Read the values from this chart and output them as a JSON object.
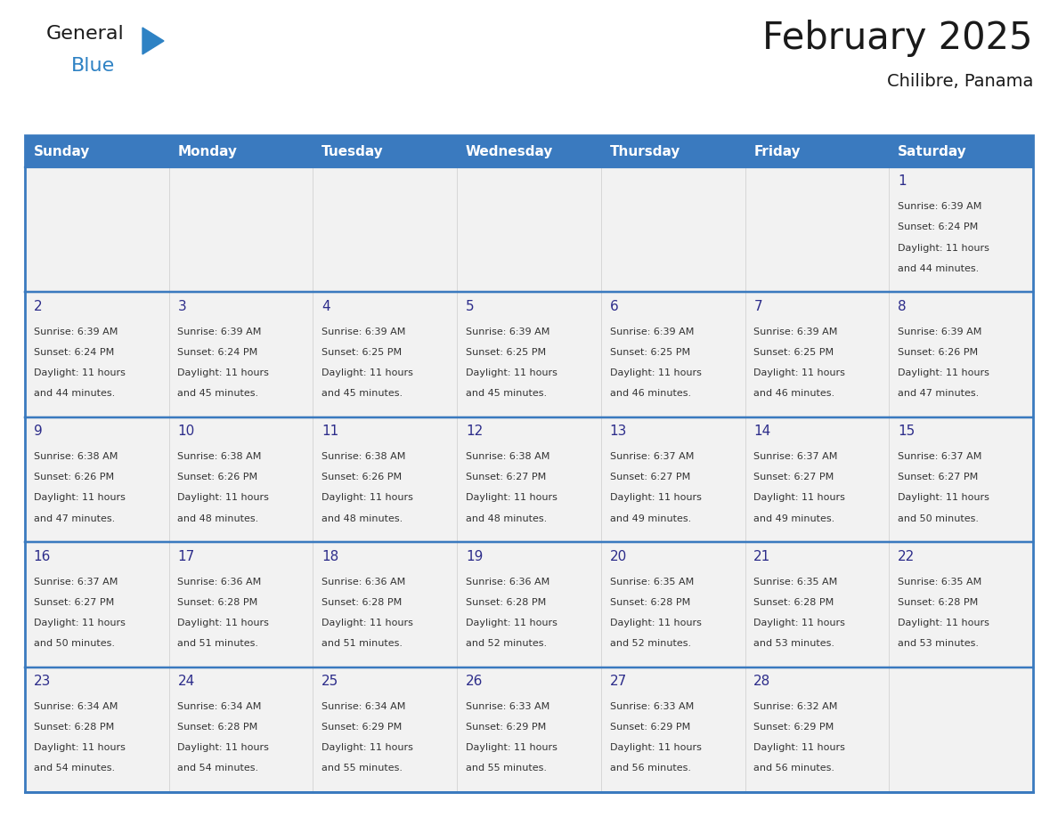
{
  "title": "February 2025",
  "subtitle": "Chilibre, Panama",
  "days_of_week": [
    "Sunday",
    "Monday",
    "Tuesday",
    "Wednesday",
    "Thursday",
    "Friday",
    "Saturday"
  ],
  "header_bg": "#3a7abf",
  "header_text": "#ffffff",
  "cell_bg": "#f2f2f2",
  "border_color": "#3a7abf",
  "week_sep_color": "#3a7abf",
  "day_num_color": "#2c2c8a",
  "text_color": "#333333",
  "title_color": "#1a1a1a",
  "logo_general_color": "#1a1a1a",
  "logo_blue_color": "#2e82c4",
  "calendar_data": [
    [
      {
        "day": null,
        "sunrise": null,
        "sunset": null,
        "daylight": null
      },
      {
        "day": null,
        "sunrise": null,
        "sunset": null,
        "daylight": null
      },
      {
        "day": null,
        "sunrise": null,
        "sunset": null,
        "daylight": null
      },
      {
        "day": null,
        "sunrise": null,
        "sunset": null,
        "daylight": null
      },
      {
        "day": null,
        "sunrise": null,
        "sunset": null,
        "daylight": null
      },
      {
        "day": null,
        "sunrise": null,
        "sunset": null,
        "daylight": null
      },
      {
        "day": 1,
        "sunrise": "6:39 AM",
        "sunset": "6:24 PM",
        "daylight": "11 hours and 44 minutes."
      }
    ],
    [
      {
        "day": 2,
        "sunrise": "6:39 AM",
        "sunset": "6:24 PM",
        "daylight": "11 hours and 44 minutes."
      },
      {
        "day": 3,
        "sunrise": "6:39 AM",
        "sunset": "6:24 PM",
        "daylight": "11 hours and 45 minutes."
      },
      {
        "day": 4,
        "sunrise": "6:39 AM",
        "sunset": "6:25 PM",
        "daylight": "11 hours and 45 minutes."
      },
      {
        "day": 5,
        "sunrise": "6:39 AM",
        "sunset": "6:25 PM",
        "daylight": "11 hours and 45 minutes."
      },
      {
        "day": 6,
        "sunrise": "6:39 AM",
        "sunset": "6:25 PM",
        "daylight": "11 hours and 46 minutes."
      },
      {
        "day": 7,
        "sunrise": "6:39 AM",
        "sunset": "6:25 PM",
        "daylight": "11 hours and 46 minutes."
      },
      {
        "day": 8,
        "sunrise": "6:39 AM",
        "sunset": "6:26 PM",
        "daylight": "11 hours and 47 minutes."
      }
    ],
    [
      {
        "day": 9,
        "sunrise": "6:38 AM",
        "sunset": "6:26 PM",
        "daylight": "11 hours and 47 minutes."
      },
      {
        "day": 10,
        "sunrise": "6:38 AM",
        "sunset": "6:26 PM",
        "daylight": "11 hours and 48 minutes."
      },
      {
        "day": 11,
        "sunrise": "6:38 AM",
        "sunset": "6:26 PM",
        "daylight": "11 hours and 48 minutes."
      },
      {
        "day": 12,
        "sunrise": "6:38 AM",
        "sunset": "6:27 PM",
        "daylight": "11 hours and 48 minutes."
      },
      {
        "day": 13,
        "sunrise": "6:37 AM",
        "sunset": "6:27 PM",
        "daylight": "11 hours and 49 minutes."
      },
      {
        "day": 14,
        "sunrise": "6:37 AM",
        "sunset": "6:27 PM",
        "daylight": "11 hours and 49 minutes."
      },
      {
        "day": 15,
        "sunrise": "6:37 AM",
        "sunset": "6:27 PM",
        "daylight": "11 hours and 50 minutes."
      }
    ],
    [
      {
        "day": 16,
        "sunrise": "6:37 AM",
        "sunset": "6:27 PM",
        "daylight": "11 hours and 50 minutes."
      },
      {
        "day": 17,
        "sunrise": "6:36 AM",
        "sunset": "6:28 PM",
        "daylight": "11 hours and 51 minutes."
      },
      {
        "day": 18,
        "sunrise": "6:36 AM",
        "sunset": "6:28 PM",
        "daylight": "11 hours and 51 minutes."
      },
      {
        "day": 19,
        "sunrise": "6:36 AM",
        "sunset": "6:28 PM",
        "daylight": "11 hours and 52 minutes."
      },
      {
        "day": 20,
        "sunrise": "6:35 AM",
        "sunset": "6:28 PM",
        "daylight": "11 hours and 52 minutes."
      },
      {
        "day": 21,
        "sunrise": "6:35 AM",
        "sunset": "6:28 PM",
        "daylight": "11 hours and 53 minutes."
      },
      {
        "day": 22,
        "sunrise": "6:35 AM",
        "sunset": "6:28 PM",
        "daylight": "11 hours and 53 minutes."
      }
    ],
    [
      {
        "day": 23,
        "sunrise": "6:34 AM",
        "sunset": "6:28 PM",
        "daylight": "11 hours and 54 minutes."
      },
      {
        "day": 24,
        "sunrise": "6:34 AM",
        "sunset": "6:28 PM",
        "daylight": "11 hours and 54 minutes."
      },
      {
        "day": 25,
        "sunrise": "6:34 AM",
        "sunset": "6:29 PM",
        "daylight": "11 hours and 55 minutes."
      },
      {
        "day": 26,
        "sunrise": "6:33 AM",
        "sunset": "6:29 PM",
        "daylight": "11 hours and 55 minutes."
      },
      {
        "day": 27,
        "sunrise": "6:33 AM",
        "sunset": "6:29 PM",
        "daylight": "11 hours and 56 minutes."
      },
      {
        "day": 28,
        "sunrise": "6:32 AM",
        "sunset": "6:29 PM",
        "daylight": "11 hours and 56 minutes."
      },
      {
        "day": null,
        "sunrise": null,
        "sunset": null,
        "daylight": null
      }
    ]
  ]
}
